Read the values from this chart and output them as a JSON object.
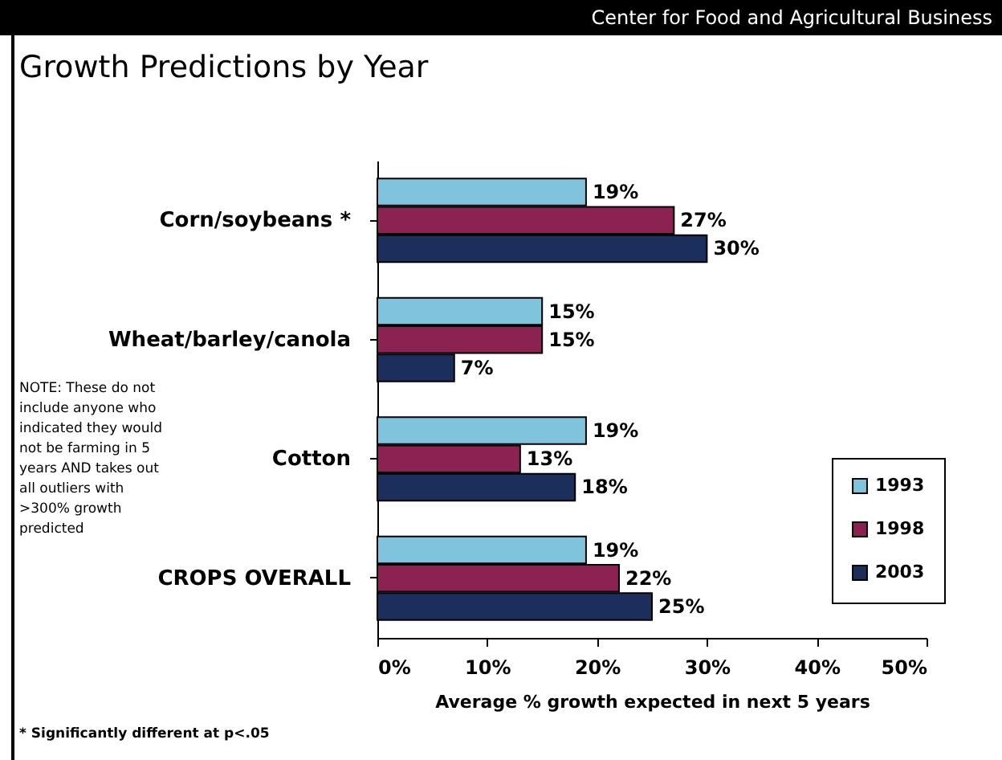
{
  "chart_data": {
    "type": "bar",
    "orientation": "horizontal",
    "title": "Growth Predictions by Year",
    "categories": [
      "Corn/soybeans *",
      "Wheat/barley/canola",
      "Cotton",
      "CROPS OVERALL"
    ],
    "series": [
      {
        "name": "1993",
        "color": "#7fc4dc",
        "values": [
          19,
          15,
          19,
          19
        ],
        "value_labels": [
          "19%",
          "15%",
          "19%",
          "19%"
        ]
      },
      {
        "name": "1998",
        "color": "#8b2252",
        "values": [
          27,
          15,
          13,
          22
        ],
        "value_labels": [
          "27%",
          "15%",
          "13%",
          "22%"
        ]
      },
      {
        "name": "2003",
        "color": "#1c2e5c",
        "values": [
          30,
          7,
          18,
          25
        ],
        "value_labels": [
          "30%",
          "7%",
          "18%",
          "25%"
        ]
      }
    ],
    "xlabel": "Average % growth expected in next 5 years",
    "xlim": [
      0,
      50
    ],
    "xticks": [
      {
        "value": 0,
        "label": "0%"
      },
      {
        "value": 10,
        "label": "10%"
      },
      {
        "value": 20,
        "label": "20%"
      },
      {
        "value": 30,
        "label": "30%"
      },
      {
        "value": 40,
        "label": "40%"
      },
      {
        "value": 50,
        "label": "50%"
      }
    ],
    "grid": false,
    "legend": "right",
    "annotations": [
      "Center for Food and Agricultural Business",
      "NOTE:  These do not\ninclude anyone who\nindicated they would\nnot be farming in 5\nyears AND takes out\nall outliers with\n>300% growth\npredicted",
      "* Significantly different at p<.05"
    ]
  }
}
